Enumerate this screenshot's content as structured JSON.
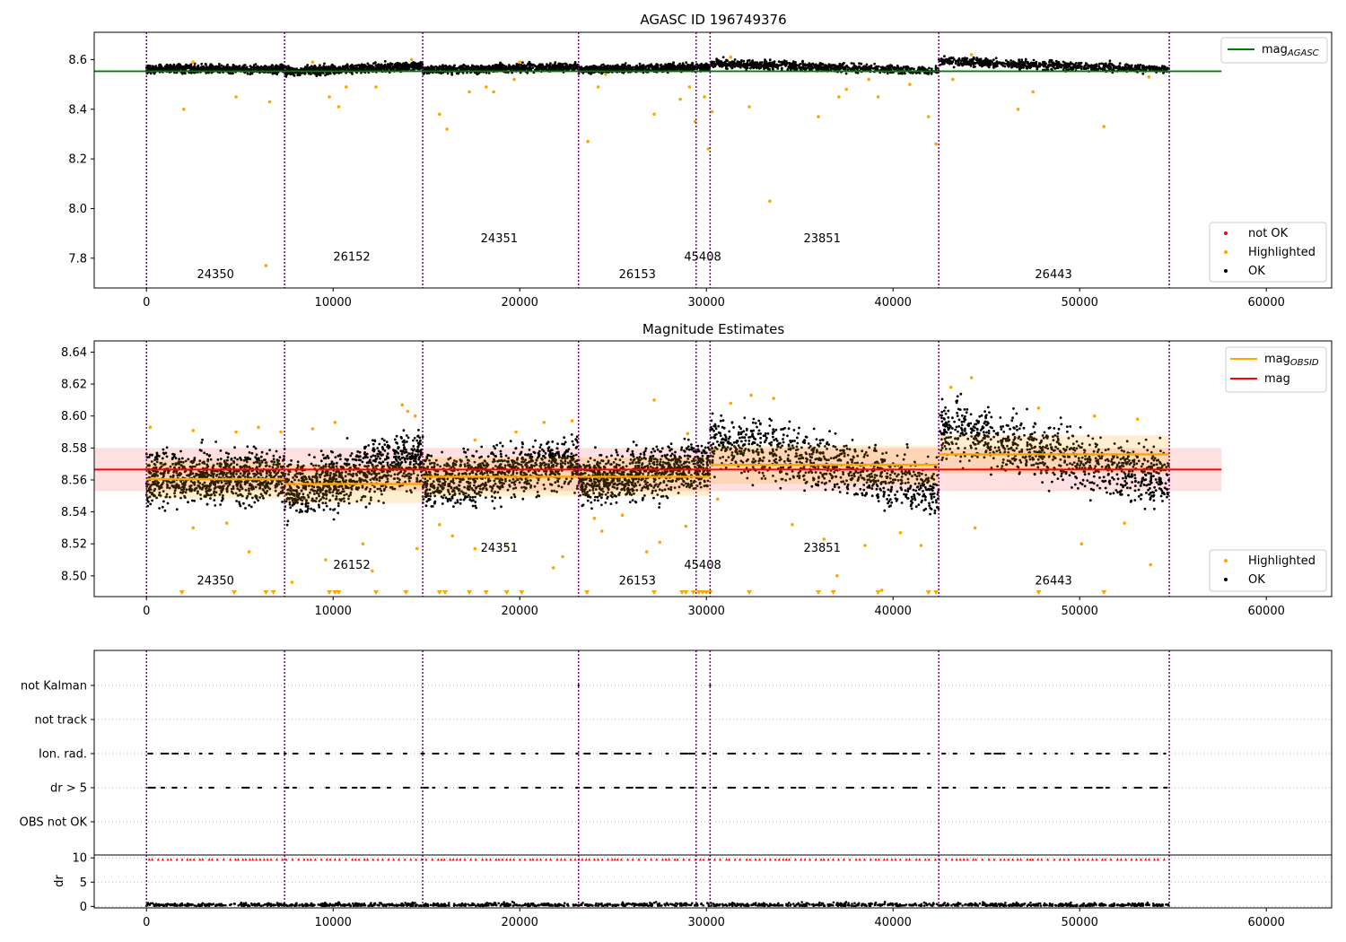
{
  "chart_data": [
    {
      "type": "scatter",
      "title": "AGASC ID 196749376",
      "xlim": [
        -2800,
        63500
      ],
      "ylim": [
        7.68,
        8.71
      ],
      "xticks": [
        0,
        10000,
        20000,
        30000,
        40000,
        50000,
        60000
      ],
      "yticks": [
        7.8,
        8.0,
        8.2,
        8.4,
        8.6
      ],
      "grid": false,
      "legends": {
        "upper_right": [
          "mag_AGASC"
        ],
        "lower_right": [
          "not OK",
          "Highlighted",
          "OK"
        ]
      },
      "mag_agasc": 8.553,
      "mag_agasc_xrange": [
        -2800,
        57600
      ],
      "obs_boundaries": [
        0,
        7400,
        14800,
        23150,
        29450,
        30200,
        42450,
        54800
      ],
      "obsids": [
        {
          "label": "24350",
          "x": 3700,
          "y": 7.72
        },
        {
          "label": "26152",
          "x": 11000,
          "y": 7.79
        },
        {
          "label": "24351",
          "x": 18900,
          "y": 7.865
        },
        {
          "label": "26153",
          "x": 26300,
          "y": 7.72
        },
        {
          "label": "45408",
          "x": 29800,
          "y": 7.79
        },
        {
          "label": "23851",
          "x": 36200,
          "y": 7.865
        },
        {
          "label": "26443",
          "x": 48600,
          "y": 7.72
        }
      ],
      "series": [
        {
          "name": "OK",
          "color": "#000000",
          "segments": [
            {
              "x": [
                0,
                7400
              ],
              "y": [
                8.562,
                8.562
              ],
              "spread": 0.028
            },
            {
              "x": [
                7400,
                14800
              ],
              "y": [
                8.552,
                8.575
              ],
              "spread": 0.03
            },
            {
              "x": [
                14800,
                23150
              ],
              "y": [
                8.558,
                8.571
              ],
              "spread": 0.028
            },
            {
              "x": [
                23150,
                30200
              ],
              "y": [
                8.559,
                8.57
              ],
              "spread": 0.026
            },
            {
              "x": [
                30200,
                42450
              ],
              "y": [
                8.586,
                8.554
              ],
              "spread": 0.03
            },
            {
              "x": [
                42450,
                54800
              ],
              "y": [
                8.593,
                8.56
              ],
              "spread": 0.03
            }
          ]
        },
        {
          "name": "Highlighted",
          "color": "#ffa500",
          "points": [
            [
              2000,
              8.4
            ],
            [
              4800,
              8.45
            ],
            [
              6400,
              7.77
            ],
            [
              6600,
              8.43
            ],
            [
              9800,
              8.45
            ],
            [
              10300,
              8.41
            ],
            [
              10700,
              8.49
            ],
            [
              12300,
              8.49
            ],
            [
              15700,
              8.38
            ],
            [
              16100,
              8.32
            ],
            [
              17300,
              8.47
            ],
            [
              18200,
              8.49
            ],
            [
              18600,
              8.47
            ],
            [
              19700,
              8.52
            ],
            [
              23650,
              8.27
            ],
            [
              24200,
              8.49
            ],
            [
              27200,
              8.38
            ],
            [
              28600,
              8.44
            ],
            [
              29100,
              8.49
            ],
            [
              29400,
              8.35
            ],
            [
              29900,
              8.45
            ],
            [
              30100,
              8.24
            ],
            [
              30300,
              8.39
            ],
            [
              32300,
              8.41
            ],
            [
              33400,
              8.03
            ],
            [
              36000,
              8.37
            ],
            [
              37100,
              8.45
            ],
            [
              37500,
              8.48
            ],
            [
              38700,
              8.52
            ],
            [
              39200,
              8.45
            ],
            [
              40900,
              8.5
            ],
            [
              41900,
              8.37
            ],
            [
              42300,
              8.26
            ],
            [
              43200,
              8.52
            ],
            [
              46700,
              8.4
            ],
            [
              47500,
              8.47
            ],
            [
              51300,
              8.33
            ],
            [
              53700,
              8.53
            ],
            [
              2500,
              8.59
            ],
            [
              8900,
              8.59
            ],
            [
              14200,
              8.6
            ],
            [
              20000,
              8.59
            ],
            [
              24600,
              8.54
            ],
            [
              31300,
              8.61
            ],
            [
              44200,
              8.62
            ]
          ]
        },
        {
          "name": "not OK",
          "color": "#ff0000",
          "points": []
        }
      ],
      "lines": [
        {
          "name": "mag_AGASC",
          "color": "#008000",
          "y": 8.553
        }
      ]
    },
    {
      "type": "scatter",
      "title": "Magnitude Estimates",
      "xlim": [
        -2800,
        63500
      ],
      "ylim": [
        8.487,
        8.647
      ],
      "xticks": [
        0,
        10000,
        20000,
        30000,
        40000,
        50000,
        60000
      ],
      "yticks": [
        8.5,
        8.52,
        8.54,
        8.56,
        8.58,
        8.6,
        8.62,
        8.64
      ],
      "grid": false,
      "legends": {
        "upper_right": [
          "mag_OBSID",
          "mag"
        ],
        "lower_right": [
          "Highlighted",
          "OK"
        ]
      },
      "mag": 8.5665,
      "mag_band": [
        8.553,
        8.58
      ],
      "mag_xrange": [
        -2800,
        57600
      ],
      "obs_boundaries": [
        0,
        7400,
        14800,
        23150,
        29450,
        30200,
        42450,
        54800
      ],
      "mag_obsid": [
        {
          "x": [
            0,
            7400
          ],
          "y": 8.5605
        },
        {
          "x": [
            7400,
            14800
          ],
          "y": 8.5575
        },
        {
          "x": [
            14800,
            30200
          ],
          "y": 8.562
        },
        {
          "x": [
            30200,
            42450
          ],
          "y": 8.5695
        },
        {
          "x": [
            42450,
            54800
          ],
          "y": 8.576
        }
      ],
      "obsids": [
        {
          "label": "24350",
          "x": 3700,
          "y": 8.4945
        },
        {
          "label": "26152",
          "x": 11000,
          "y": 8.5045
        },
        {
          "label": "24351",
          "x": 18900,
          "y": 8.515
        },
        {
          "label": "26153",
          "x": 26300,
          "y": 8.4945
        },
        {
          "label": "45408",
          "x": 29800,
          "y": 8.5045
        },
        {
          "label": "23851",
          "x": 36200,
          "y": 8.515
        },
        {
          "label": "26443",
          "x": 48600,
          "y": 8.4945
        }
      ],
      "series": [
        {
          "name": "OK",
          "color": "#000000",
          "segments": [
            {
              "x": [
                0,
                7400
              ],
              "y": [
                8.562,
                8.562
              ],
              "spread": 0.028
            },
            {
              "x": [
                7400,
                14800
              ],
              "y": [
                8.552,
                8.575
              ],
              "spread": 0.03
            },
            {
              "x": [
                14800,
                23150
              ],
              "y": [
                8.558,
                8.571
              ],
              "spread": 0.028
            },
            {
              "x": [
                23150,
                30200
              ],
              "y": [
                8.559,
                8.57
              ],
              "spread": 0.026
            },
            {
              "x": [
                30200,
                42450
              ],
              "y": [
                8.586,
                8.554
              ],
              "spread": 0.03
            },
            {
              "x": [
                42450,
                54800
              ],
              "y": [
                8.593,
                8.56
              ],
              "spread": 0.03
            }
          ]
        },
        {
          "name": "Highlighted",
          "color": "#ffa500",
          "points": [
            [
              200,
              8.593
            ],
            [
              2500,
              8.591
            ],
            [
              4800,
              8.59
            ],
            [
              6000,
              8.593
            ],
            [
              7200,
              8.59
            ],
            [
              8900,
              8.592
            ],
            [
              10100,
              8.596
            ],
            [
              13700,
              8.607
            ],
            [
              14000,
              8.603
            ],
            [
              14400,
              8.6
            ],
            [
              17600,
              8.585
            ],
            [
              19800,
              8.59
            ],
            [
              21300,
              8.596
            ],
            [
              22800,
              8.597
            ],
            [
              27200,
              8.61
            ],
            [
              29000,
              8.589
            ],
            [
              31300,
              8.608
            ],
            [
              32400,
              8.613
            ],
            [
              33600,
              8.611
            ],
            [
              43100,
              8.618
            ],
            [
              44200,
              8.624
            ],
            [
              47800,
              8.605
            ],
            [
              50800,
              8.6
            ],
            [
              53100,
              8.598
            ],
            [
              2500,
              8.53
            ],
            [
              4300,
              8.533
            ],
            [
              5500,
              8.515
            ],
            [
              7800,
              8.496
            ],
            [
              9600,
              8.51
            ],
            [
              11600,
              8.52
            ],
            [
              12100,
              8.503
            ],
            [
              14500,
              8.517
            ],
            [
              15700,
              8.532
            ],
            [
              16400,
              8.525
            ],
            [
              17600,
              8.517
            ],
            [
              19300,
              8.519
            ],
            [
              21800,
              8.505
            ],
            [
              22300,
              8.512
            ],
            [
              24000,
              8.536
            ],
            [
              24400,
              8.528
            ],
            [
              25500,
              8.538
            ],
            [
              26800,
              8.515
            ],
            [
              27500,
              8.521
            ],
            [
              28900,
              8.531
            ],
            [
              30600,
              8.548
            ],
            [
              34600,
              8.532
            ],
            [
              36300,
              8.523
            ],
            [
              37000,
              8.5
            ],
            [
              38500,
              8.519
            ],
            [
              39400,
              8.491
            ],
            [
              40400,
              8.527
            ],
            [
              41500,
              8.519
            ],
            [
              44400,
              8.53
            ],
            [
              50100,
              8.52
            ],
            [
              52400,
              8.533
            ],
            [
              53800,
              8.507
            ]
          ]
        }
      ],
      "offscale_markers_x": [
        1900,
        4700,
        6400,
        6800,
        9800,
        10100,
        10300,
        12300,
        13900,
        15700,
        16000,
        17300,
        18200,
        19300,
        20100,
        23600,
        27200,
        28700,
        28900,
        29300,
        29600,
        29800,
        30000,
        30200,
        32300,
        36000,
        36800,
        39200,
        41900,
        42300,
        47800,
        51300
      ]
    },
    {
      "type": "scatter",
      "title": "",
      "xlim": [
        -2800,
        63500
      ],
      "xticks": [
        0,
        10000,
        20000,
        30000,
        40000,
        50000,
        60000
      ],
      "flags": [
        "not Kalman",
        "not track",
        "Ion. rad.",
        "dr > 5",
        "OBS not OK"
      ],
      "obs_boundaries": [
        0,
        7400,
        14800,
        23150,
        29450,
        30200,
        42450,
        54800
      ],
      "grid": true,
      "series": [
        {
          "name": "Ion. rad.",
          "color": "#000000",
          "x": [
            0,
            54800
          ],
          "density": "sparse-clustered"
        },
        {
          "name": "dr > 5",
          "color": "#000000",
          "x": [
            0,
            54800
          ],
          "density": "sparse-clustered"
        },
        {
          "name": "not Kalman",
          "color": "#000000",
          "x": [
            23150,
            30200
          ]
        }
      ]
    },
    {
      "type": "scatter",
      "title": "",
      "xlim": [
        -2800,
        63500
      ],
      "ylim": [
        -0.3,
        10.6
      ],
      "xticks": [
        0,
        10000,
        20000,
        30000,
        40000,
        50000,
        60000
      ],
      "yticks": [
        0,
        5,
        10
      ],
      "ylabel": "dr",
      "grid": true,
      "obs_boundaries": [
        0,
        7400,
        14800,
        23150,
        29450,
        30200,
        42450,
        54800
      ],
      "series": [
        {
          "name": "dr",
          "color": "#000000",
          "x": [
            0,
            54800
          ],
          "y": [
            0.0,
            1.5
          ]
        },
        {
          "name": "dr clipped",
          "color": "#ff0000",
          "y": 9.7,
          "marker": "triangle-up"
        }
      ]
    }
  ]
}
